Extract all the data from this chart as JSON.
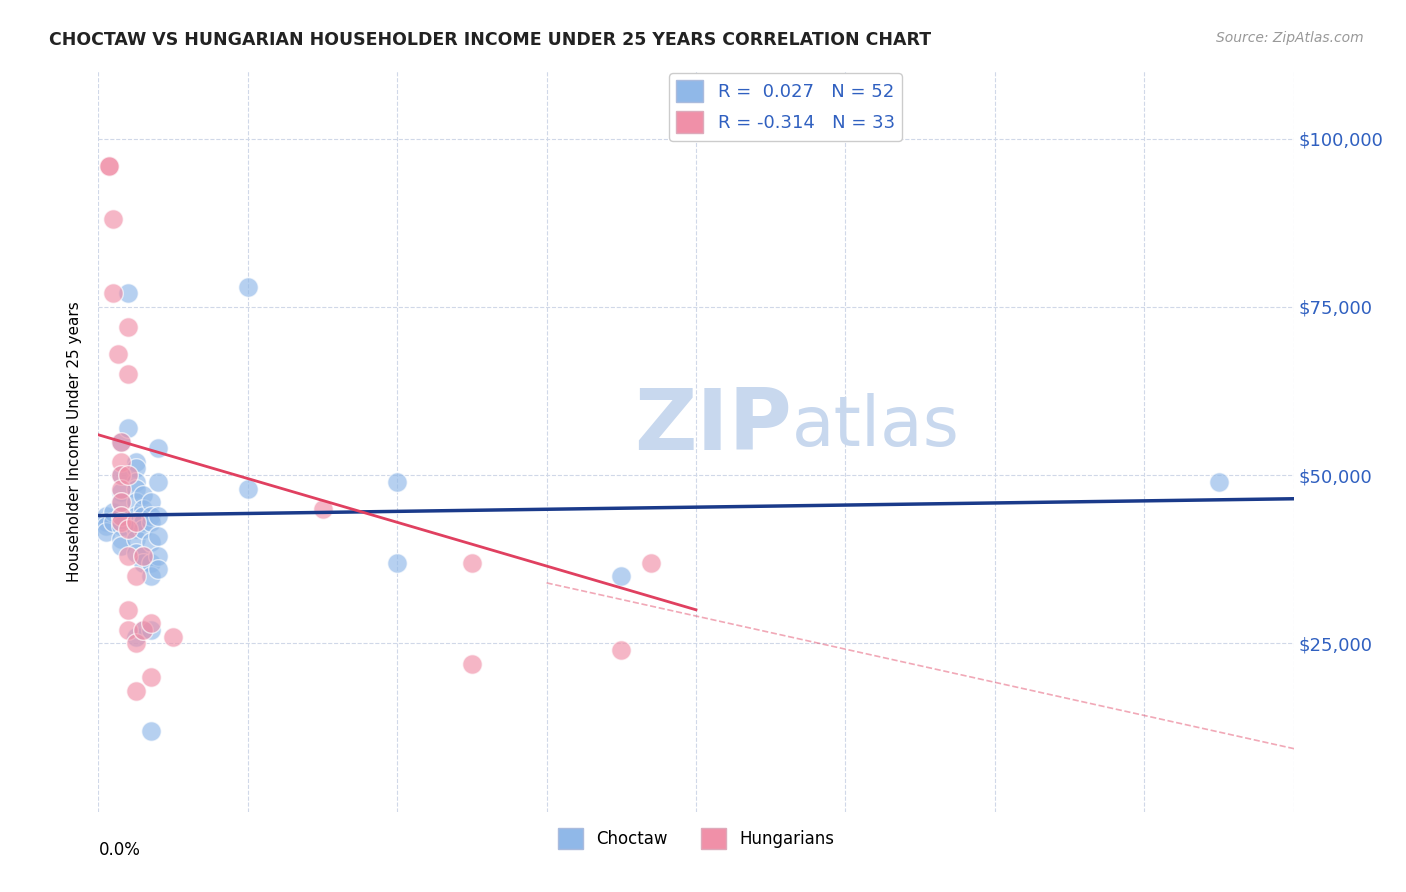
{
  "title": "CHOCTAW VS HUNGARIAN HOUSEHOLDER INCOME UNDER 25 YEARS CORRELATION CHART",
  "source": "Source: ZipAtlas.com",
  "ylabel": "Householder Income Under 25 years",
  "ytick_labels": [
    "$25,000",
    "$50,000",
    "$75,000",
    "$100,000"
  ],
  "ytick_values": [
    25000,
    50000,
    75000,
    100000
  ],
  "ylim": [
    0,
    110000
  ],
  "xlim": [
    0.0,
    0.8
  ],
  "xtick_vals": [
    0.0,
    0.1,
    0.2,
    0.3,
    0.4,
    0.5,
    0.6,
    0.7,
    0.8
  ],
  "choctaw_scatter": [
    [
      0.005,
      44000
    ],
    [
      0.005,
      43000
    ],
    [
      0.005,
      42500
    ],
    [
      0.005,
      41500
    ],
    [
      0.01,
      44500
    ],
    [
      0.01,
      43000
    ],
    [
      0.015,
      55000
    ],
    [
      0.015,
      50000
    ],
    [
      0.015,
      47500
    ],
    [
      0.015,
      46000
    ],
    [
      0.015,
      44000
    ],
    [
      0.015,
      42500
    ],
    [
      0.015,
      40500
    ],
    [
      0.015,
      39500
    ],
    [
      0.02,
      77000
    ],
    [
      0.02,
      57000
    ],
    [
      0.025,
      52000
    ],
    [
      0.025,
      51000
    ],
    [
      0.025,
      49000
    ],
    [
      0.025,
      48000
    ],
    [
      0.025,
      46000
    ],
    [
      0.025,
      44000
    ],
    [
      0.025,
      43000
    ],
    [
      0.025,
      42000
    ],
    [
      0.025,
      40500
    ],
    [
      0.025,
      38500
    ],
    [
      0.025,
      26000
    ],
    [
      0.03,
      47000
    ],
    [
      0.03,
      45000
    ],
    [
      0.03,
      44000
    ],
    [
      0.03,
      43000
    ],
    [
      0.03,
      42000
    ],
    [
      0.03,
      38000
    ],
    [
      0.03,
      37000
    ],
    [
      0.03,
      27000
    ],
    [
      0.035,
      46000
    ],
    [
      0.035,
      44000
    ],
    [
      0.035,
      43000
    ],
    [
      0.035,
      40000
    ],
    [
      0.035,
      37000
    ],
    [
      0.035,
      35000
    ],
    [
      0.035,
      27000
    ],
    [
      0.035,
      12000
    ],
    [
      0.04,
      54000
    ],
    [
      0.04,
      49000
    ],
    [
      0.04,
      44000
    ],
    [
      0.04,
      41000
    ],
    [
      0.04,
      38000
    ],
    [
      0.04,
      36000
    ],
    [
      0.1,
      78000
    ],
    [
      0.1,
      48000
    ],
    [
      0.2,
      49000
    ],
    [
      0.2,
      37000
    ],
    [
      0.35,
      35000
    ],
    [
      0.75,
      49000
    ]
  ],
  "hungarian_scatter": [
    [
      0.007,
      96000
    ],
    [
      0.007,
      96000
    ],
    [
      0.01,
      88000
    ],
    [
      0.01,
      77000
    ],
    [
      0.013,
      68000
    ],
    [
      0.015,
      55000
    ],
    [
      0.015,
      52000
    ],
    [
      0.015,
      50000
    ],
    [
      0.015,
      48000
    ],
    [
      0.015,
      46000
    ],
    [
      0.015,
      44000
    ],
    [
      0.015,
      43000
    ],
    [
      0.02,
      72000
    ],
    [
      0.02,
      65000
    ],
    [
      0.02,
      50000
    ],
    [
      0.02,
      42000
    ],
    [
      0.02,
      38000
    ],
    [
      0.02,
      30000
    ],
    [
      0.02,
      27000
    ],
    [
      0.025,
      43000
    ],
    [
      0.025,
      35000
    ],
    [
      0.025,
      25000
    ],
    [
      0.025,
      18000
    ],
    [
      0.03,
      38000
    ],
    [
      0.03,
      27000
    ],
    [
      0.035,
      28000
    ],
    [
      0.035,
      20000
    ],
    [
      0.05,
      26000
    ],
    [
      0.15,
      45000
    ],
    [
      0.25,
      37000
    ],
    [
      0.25,
      22000
    ],
    [
      0.35,
      24000
    ],
    [
      0.37,
      37000
    ]
  ],
  "choctaw_line": {
    "x": [
      0.0,
      0.8
    ],
    "y": [
      44000,
      46500
    ]
  },
  "hungarian_line_solid": {
    "x": [
      0.0,
      0.4
    ],
    "y": [
      56000,
      30000
    ]
  },
  "hungarian_line_dashed": {
    "x": [
      0.3,
      0.95
    ],
    "y": [
      34000,
      2000
    ]
  },
  "scatter_color_choctaw": "#90b8e8",
  "scatter_color_hungarian": "#f090a8",
  "line_color_choctaw": "#1a3a8a",
  "line_color_hungarian": "#e04060",
  "watermark_zip": "ZIP",
  "watermark_atlas": "atlas",
  "watermark_color": "#c8d8ee",
  "background_color": "#ffffff",
  "grid_color": "#d0d8e8",
  "legend_label_choctaw": "Choctaw",
  "legend_label_hungarian": "Hungarians",
  "label_color_blue": "#3060c0",
  "label_color_dark": "#222222",
  "label_color_gray": "#999999"
}
